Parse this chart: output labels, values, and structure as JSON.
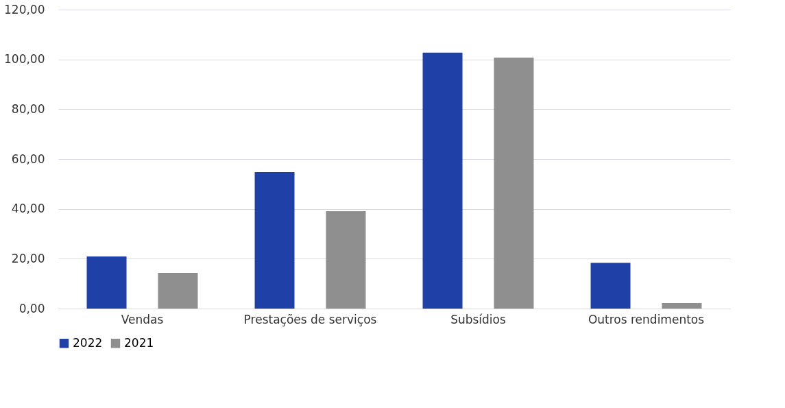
{
  "chart_data": {
    "type": "bar",
    "categories": [
      "Vendas",
      "Prestações de serviços",
      "Subsídios",
      "Outros rendimentos"
    ],
    "series": [
      {
        "name": "2022",
        "color": "#1f40a6",
        "values": [
          20.9,
          54.8,
          102.7,
          18.4
        ]
      },
      {
        "name": "2021",
        "color": "#8f8f8f",
        "values": [
          14.3,
          39.1,
          100.7,
          2.2
        ]
      }
    ],
    "ylim": [
      0,
      120
    ],
    "yticks": [
      {
        "value": 0,
        "label": "0,00"
      },
      {
        "value": 20,
        "label": "20,00"
      },
      {
        "value": 40,
        "label": "40,00"
      },
      {
        "value": 60,
        "label": "60,00"
      },
      {
        "value": 80,
        "label": "80,00"
      },
      {
        "value": 100,
        "label": "100,00"
      },
      {
        "value": 120,
        "label": "120,00"
      }
    ],
    "grid": "y",
    "legend": "bottom"
  }
}
